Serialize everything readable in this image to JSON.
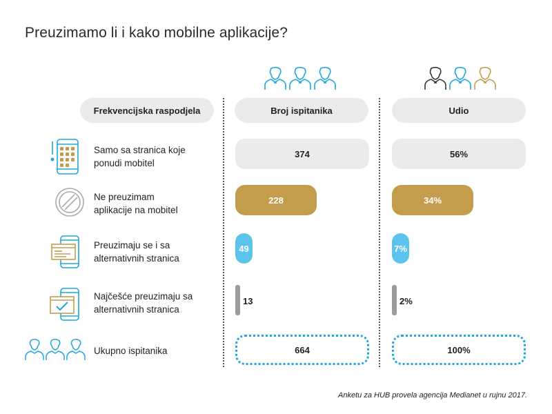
{
  "title": "Preuzimamo li i kako mobilne aplikacije?",
  "headers": {
    "label_col": "Frekvencijska raspodjela",
    "count_col": "Broj ispitanika",
    "share_col": "Udio"
  },
  "colors": {
    "gray": "#ebebeb",
    "gold": "#c39c4e",
    "blue": "#5bc4ec",
    "slim": "#9b9b9b",
    "dotted_border": "#1ea7dc",
    "icon_blue": "#1ea7dc",
    "icon_gold": "#c39c4e",
    "icon_gray": "#aaaaaa",
    "icon_dark": "#333333"
  },
  "rows": [
    {
      "label_line1": "Samo sa stranica koje",
      "label_line2": "ponudi mobitel",
      "count_label": "374",
      "share_label": "56%",
      "icon": "phone-exclamation-icon",
      "style": "gray"
    },
    {
      "label_line1": "Ne preuzimam",
      "label_line2": "aplikacije na mobitel",
      "count_label": "228",
      "share_label": "34%",
      "icon": "prohibited-icon",
      "style": "gold"
    },
    {
      "label_line1": "Preuzimaju se i sa",
      "label_line2": "alternativnih stranica",
      "count_label": "49",
      "share_label": "7%",
      "icon": "phone-browser-icon",
      "style": "blue"
    },
    {
      "label_line1": "Najčešće preuzimaju sa",
      "label_line2": "alternativnih stranica",
      "count_label": "13",
      "share_label": "2%",
      "icon": "phone-browser-check-icon",
      "style": "slim"
    },
    {
      "label_line1": "Ukupno ispitanika",
      "label_line2": "",
      "count_label": "664",
      "share_label": "100%",
      "icon": "people-group-icon",
      "style": "dotted"
    }
  ],
  "chart_data": {
    "type": "table",
    "columns": [
      "Frekvencijska raspodjela",
      "Broj ispitanika",
      "Udio"
    ],
    "categories": [
      "Samo sa stranica koje ponudi mobitel",
      "Ne preuzimam aplikacije na mobitel",
      "Preuzimaju se i sa alternativnih stranica",
      "Najčešće preuzimaju sa alternativnih stranica",
      "Ukupno ispitanika"
    ],
    "series": [
      {
        "name": "Broj ispitanika",
        "values": [
          374,
          228,
          49,
          13,
          664
        ]
      },
      {
        "name": "Udio",
        "values": [
          56,
          34,
          7,
          2,
          100
        ]
      }
    ]
  },
  "footer": "Anketu za HUB provela agencija Medianet u rujnu 2017."
}
